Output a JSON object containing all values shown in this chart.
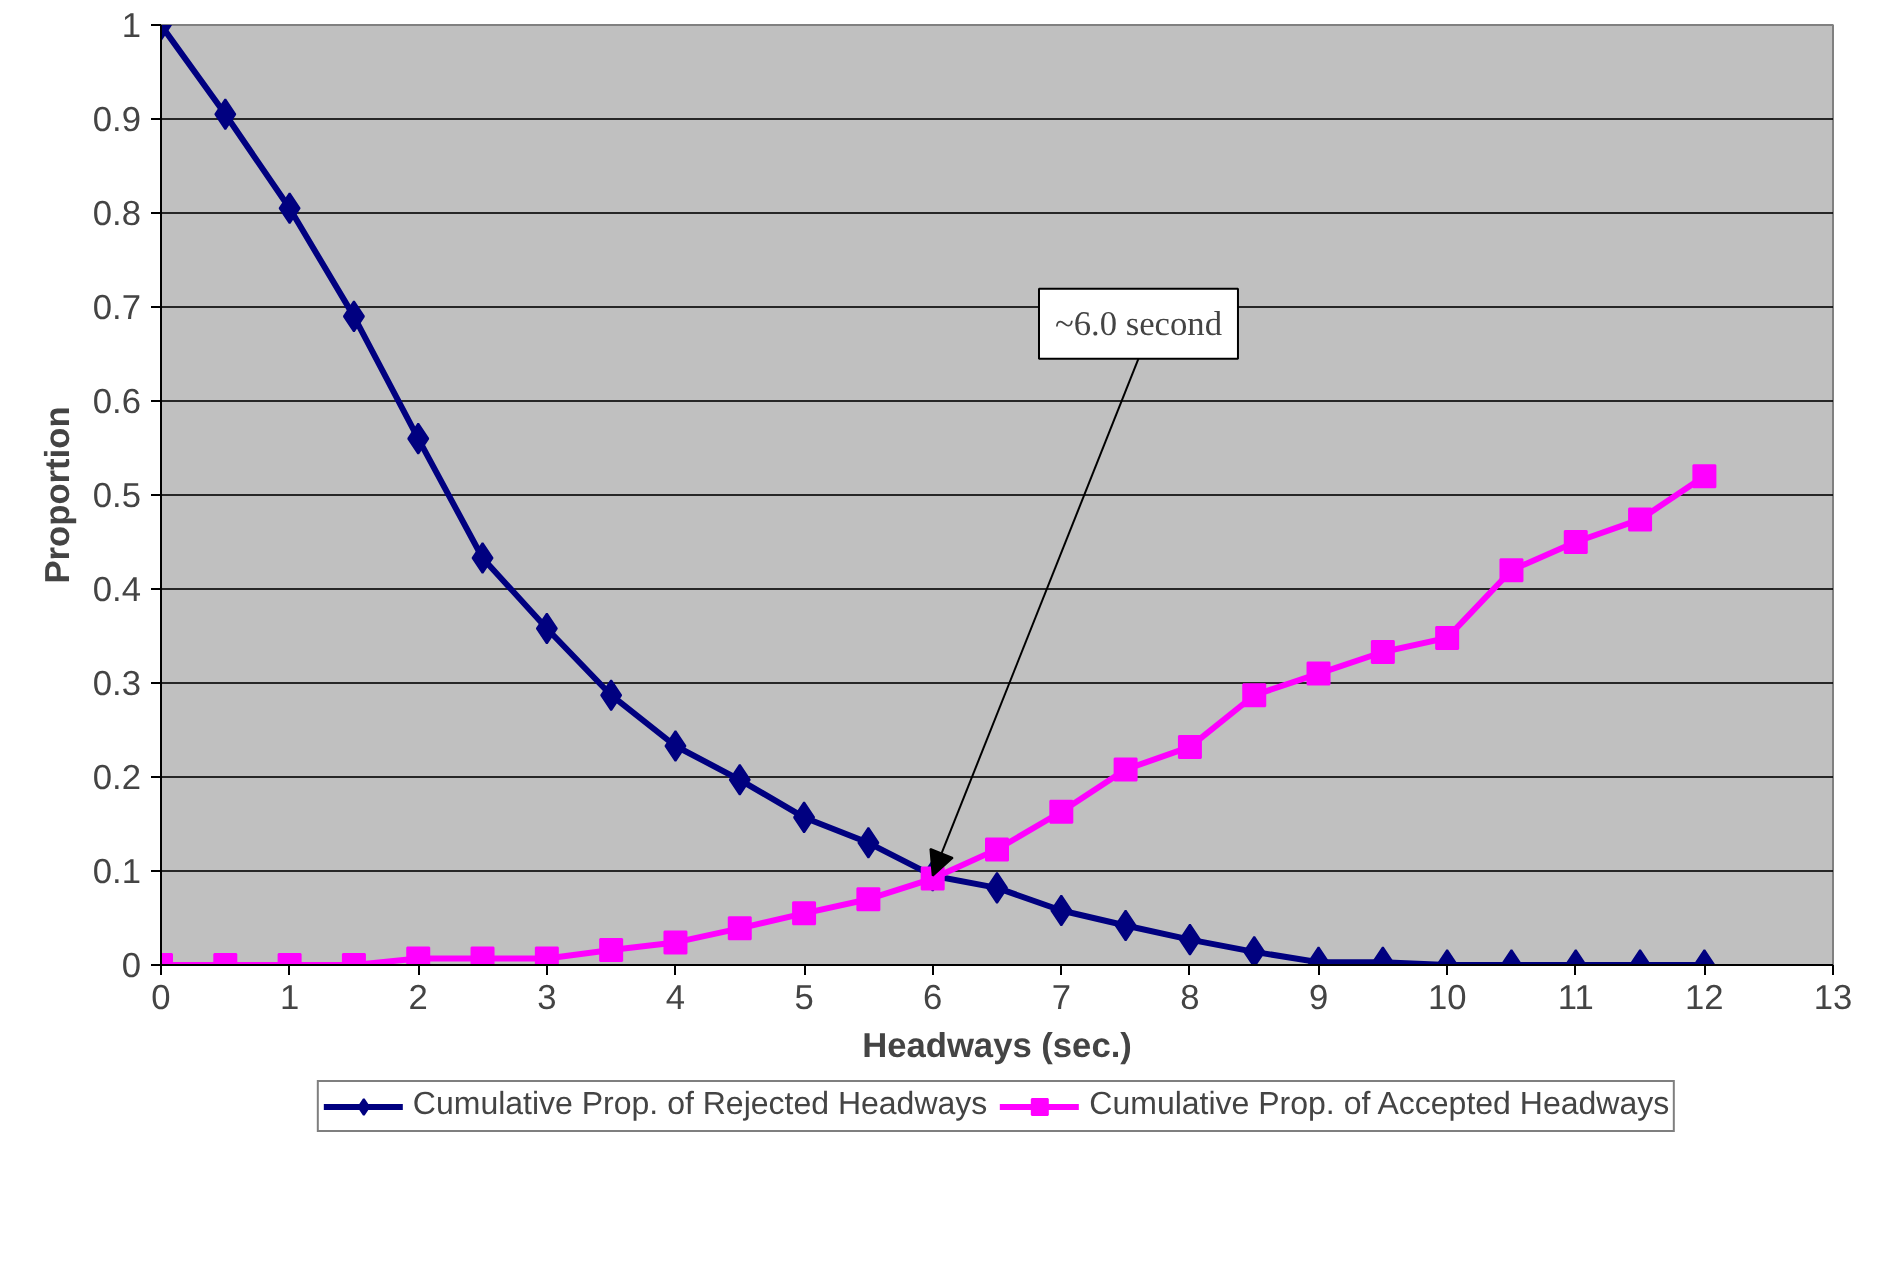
{
  "chart_data": {
    "type": "line",
    "xlabel": "Headways (sec.)",
    "ylabel": "Proportion",
    "x": [
      0,
      0.5,
      1,
      1.5,
      2,
      2.5,
      3,
      3.5,
      4,
      4.5,
      5,
      5.5,
      6,
      6.5,
      7,
      7.5,
      8,
      8.5,
      9,
      9.5,
      10,
      10.5,
      11,
      11.5,
      12
    ],
    "series": [
      {
        "name": "Cumulative Prop. of Rejected Headways",
        "color": "#000080",
        "marker": "diamond",
        "values": [
          1,
          0.905,
          0.805,
          0.69,
          0.56,
          0.433,
          0.358,
          0.287,
          0.233,
          0.197,
          0.157,
          0.13,
          0.095,
          0.082,
          0.058,
          0.042,
          0.027,
          0.014,
          0.003,
          0.003,
          0,
          0,
          0,
          0,
          0
        ]
      },
      {
        "name": "Cumulative Prop. of Accepted Headways",
        "color": "#ff00ff",
        "marker": "square",
        "values": [
          0,
          0,
          0,
          0,
          0.007,
          0.007,
          0.007,
          0.016,
          0.024,
          0.039,
          0.055,
          0.07,
          0.092,
          0.123,
          0.163,
          0.208,
          0.232,
          0.287,
          0.31,
          0.333,
          0.348,
          0.42,
          0.45,
          0.474,
          0.52
        ]
      }
    ],
    "xlim": [
      0,
      13
    ],
    "xticks": [
      0,
      1,
      2,
      3,
      4,
      5,
      6,
      7,
      8,
      9,
      10,
      11,
      12,
      13
    ],
    "ylim": [
      0,
      1
    ],
    "yticks": [
      0,
      0.1,
      0.2,
      0.3,
      0.4,
      0.5,
      0.6,
      0.7,
      0.8,
      0.9,
      1
    ],
    "grid": "y",
    "legend": "bottom",
    "annotations": [
      {
        "text": "~6.0 second",
        "x": 6,
        "y": 0.095
      }
    ]
  }
}
